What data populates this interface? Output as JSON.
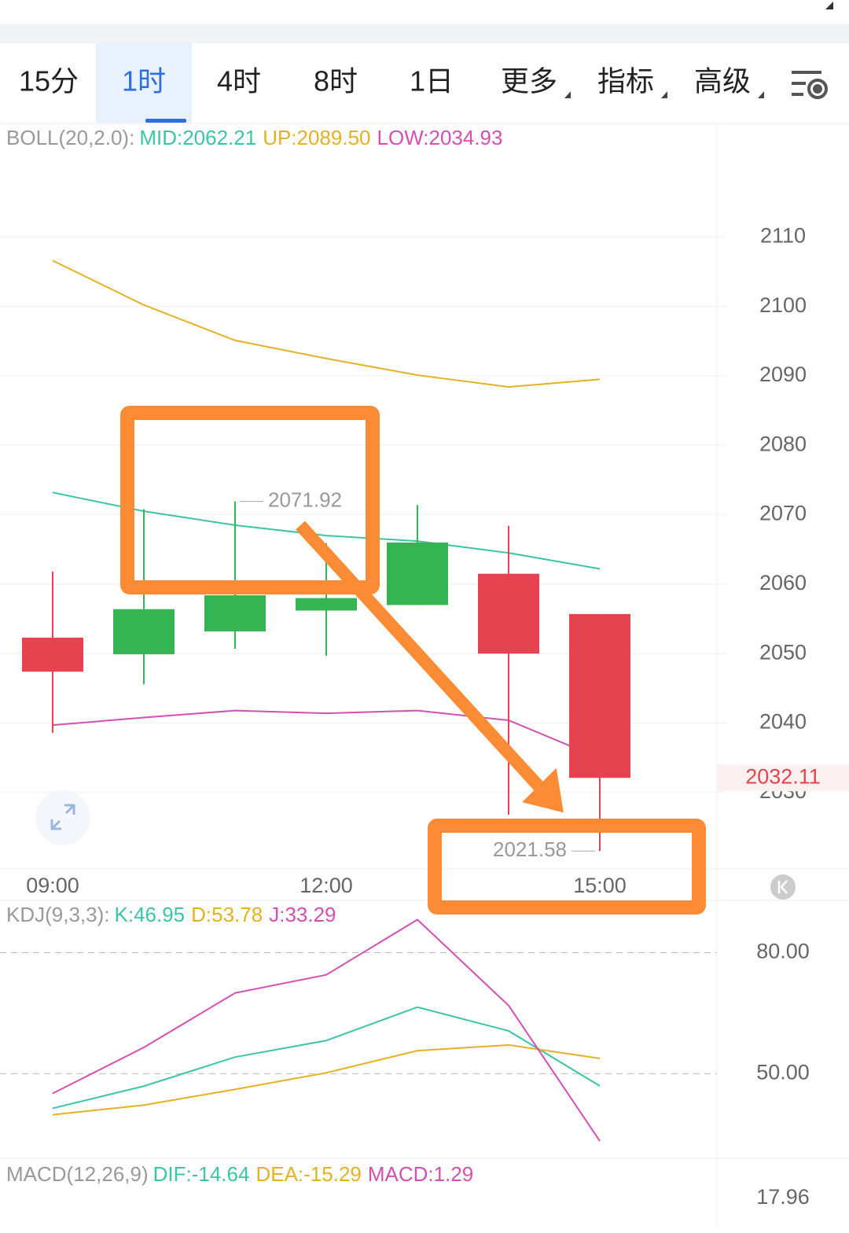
{
  "tabs": [
    "15分",
    "1时",
    "4时",
    "8时",
    "1日",
    "更多",
    "指标",
    "高级"
  ],
  "active_tab": 1,
  "chart_data": [
    {
      "type": "candlestick",
      "title": "BOLL(20,2.0):",
      "categories": [
        "09:00",
        null,
        null,
        "12:00",
        null,
        null,
        "15:00"
      ],
      "open": [
        2052.3,
        2049.9,
        2053.2,
        2056.2,
        2057.0,
        2061.5,
        2055.7
      ],
      "high": [
        2061.8,
        2070.8,
        2071.92,
        2065.9,
        2071.4,
        2068.4,
        2055.7
      ],
      "low": [
        2038.6,
        2045.6,
        2050.7,
        2049.7,
        2057.0,
        2026.8,
        2021.58
      ],
      "close": [
        2047.4,
        2056.4,
        2058.4,
        2058.0,
        2066.0,
        2050.0,
        2032.11
      ],
      "up_color": "#35b454",
      "down_color": "#e5434f",
      "series": [
        {
          "label": "MID:2062.21",
          "color": "#3cc4a6",
          "values": [
            2073.2,
            2070.5,
            2068.5,
            2067.0,
            2066.2,
            2064.5,
            2062.21
          ]
        },
        {
          "label": "UP:2089.50",
          "color": "#e5b124",
          "values": [
            2106.6,
            2100.2,
            2095.1,
            2092.5,
            2090.1,
            2088.4,
            2089.5
          ]
        },
        {
          "label": "LOW:2034.93",
          "color": "#d54fb2",
          "values": [
            2039.7,
            2040.8,
            2041.8,
            2041.4,
            2041.8,
            2040.4,
            2034.93
          ]
        }
      ],
      "max_label": "2071.92",
      "min_label": "2021.58",
      "last_price_label": "2032.11",
      "ylim": [
        2019,
        2126
      ],
      "yticks": [
        2030,
        2040,
        2050,
        2060,
        2070,
        2080,
        2090,
        2100,
        2110
      ],
      "grid": true
    },
    {
      "type": "line",
      "title": "KDJ(9,3,3):",
      "series": [
        {
          "label": "K:46.95",
          "color": "#3cc4a6",
          "values": [
            41.4,
            46.9,
            54.1,
            58.2,
            66.5,
            60.6,
            46.95
          ]
        },
        {
          "label": "D:53.78",
          "color": "#e5b124",
          "values": [
            39.8,
            42.2,
            46.1,
            50.2,
            55.7,
            57.1,
            53.78
          ]
        },
        {
          "label": "J:33.29",
          "color": "#d54fb2",
          "values": [
            45.1,
            56.5,
            70.0,
            74.5,
            88.2,
            66.9,
            33.29
          ]
        }
      ],
      "ylim": [
        29,
        92
      ],
      "yticks": [
        {
          "value": 50,
          "label": "50.00"
        },
        {
          "value": 80,
          "label": "80.00"
        }
      ],
      "grid": true
    },
    {
      "type": "indicator",
      "title": "MACD(12,26,9)",
      "series": [
        {
          "label": "DIF:-14.64",
          "color": "#3cc4a6"
        },
        {
          "label": "DEA:-15.29",
          "color": "#e5b124"
        },
        {
          "label": "MACD:1.29",
          "color": "#d54fb2"
        }
      ],
      "top_label": "17.96"
    }
  ]
}
